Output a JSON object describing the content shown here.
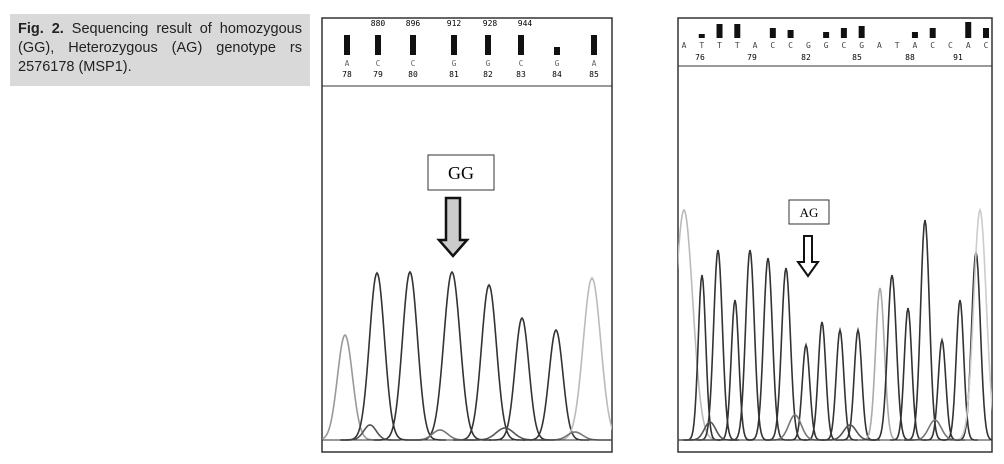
{
  "caption": {
    "label": "Fig. 2.",
    "text": "Sequencing result of homozygous (GG), Heterozygous (AG) genotype rs 2576178 (MSP1)."
  },
  "panels": [
    {
      "ruler": [
        "880",
        "896",
        "912",
        "928",
        "944"
      ],
      "bases": [
        "A",
        "C",
        "C",
        "G",
        "G",
        "C",
        "G",
        "A"
      ],
      "positions": [
        78,
        79,
        80,
        81,
        82,
        83,
        84,
        85
      ],
      "label": "GG"
    },
    {
      "bases": [
        "A",
        "T",
        "T",
        "T",
        "A",
        "C",
        "C",
        "G",
        "G",
        "C",
        "G",
        "A",
        "T",
        "A",
        "C",
        "C",
        "A",
        "C"
      ],
      "positions": [
        76,
        79,
        82,
        85,
        88,
        91
      ],
      "label": "AG"
    }
  ]
}
